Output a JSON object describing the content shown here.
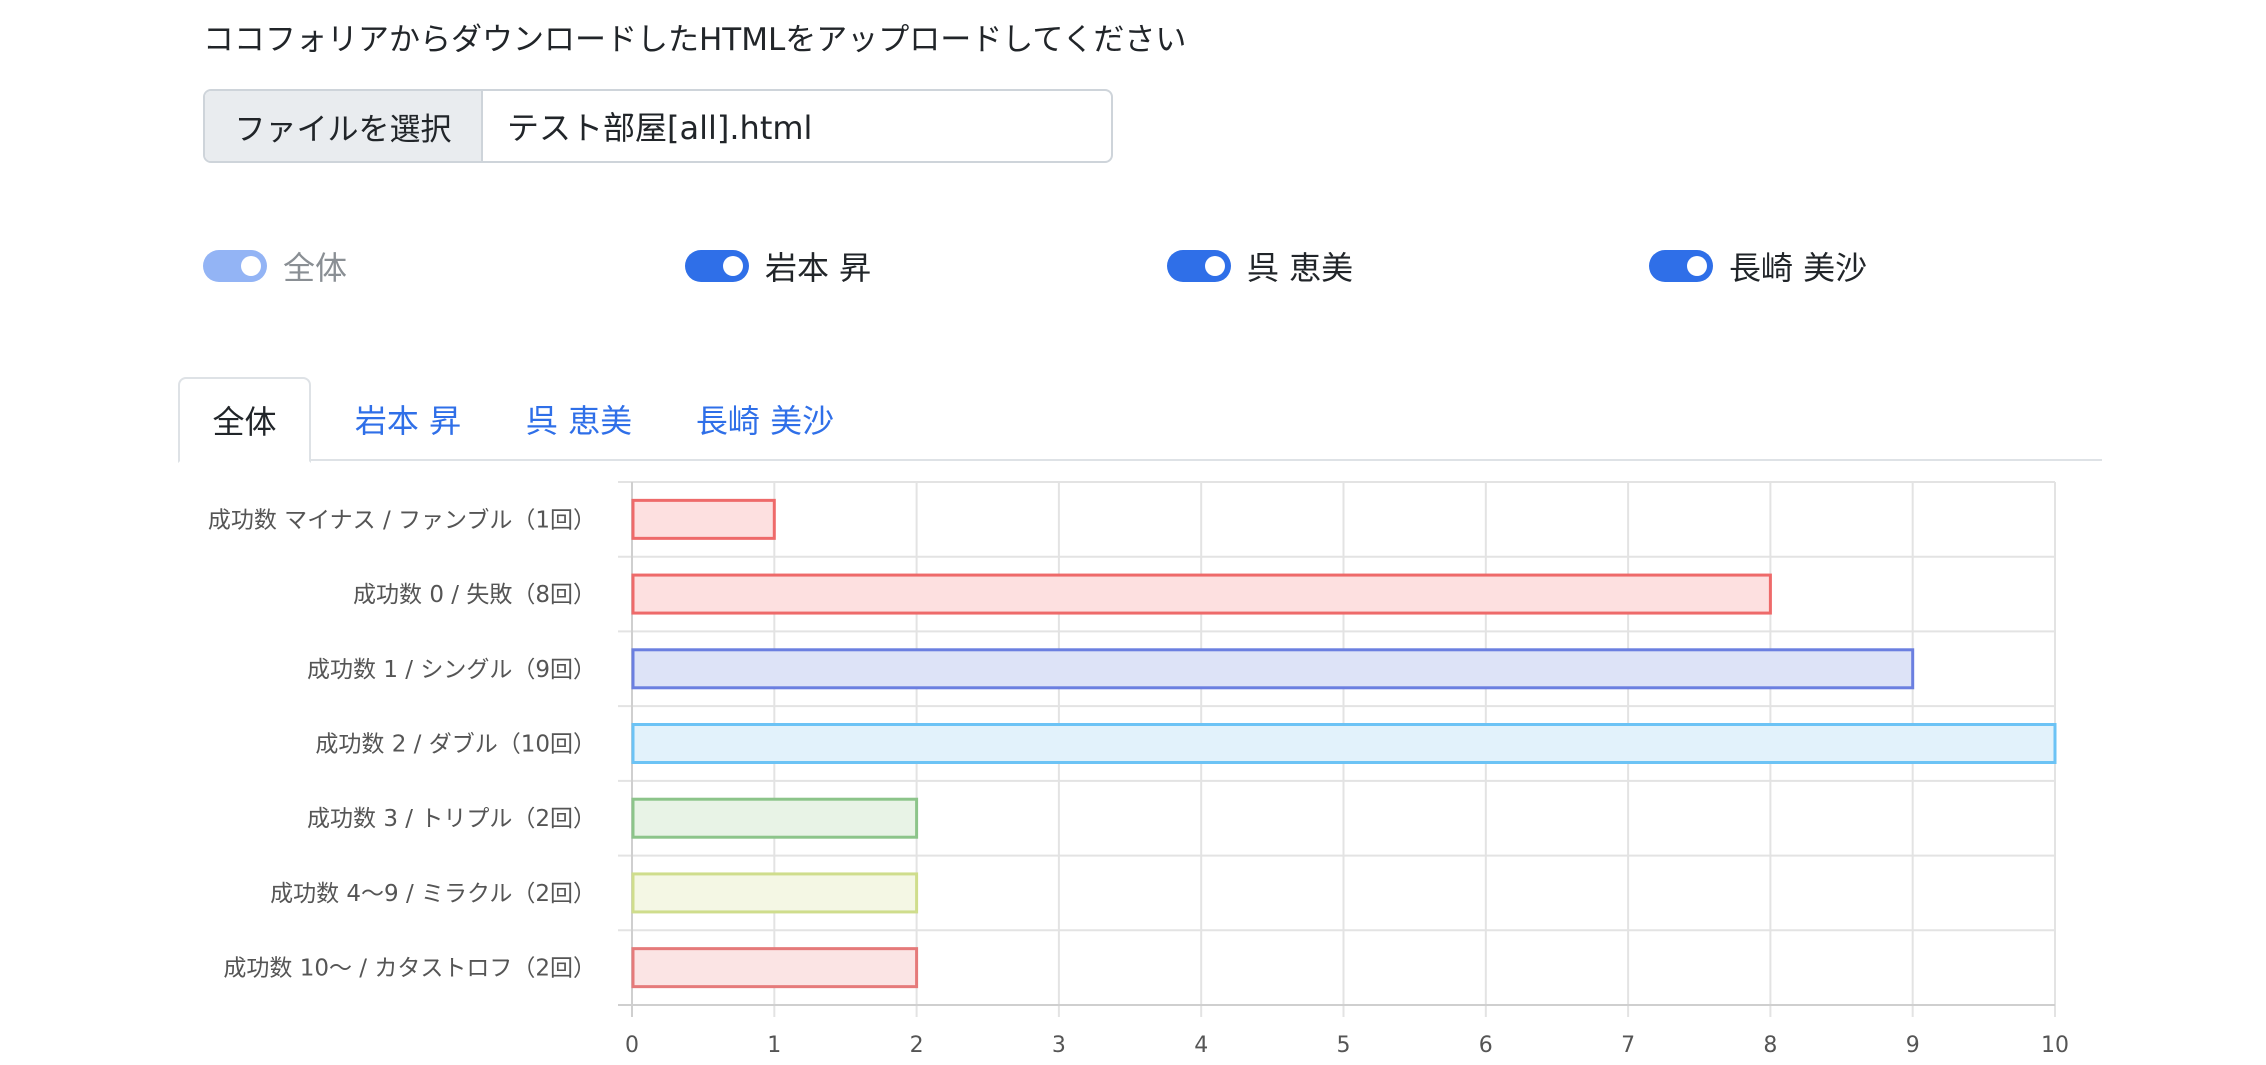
{
  "header": {
    "instruction": "ココフォリアからダウンロードしたHTMLをアップロードしてください"
  },
  "file_input": {
    "button_label": "ファイルを選択",
    "file_name": "テスト部屋[all].html"
  },
  "switches": [
    {
      "label": "全体",
      "on": true,
      "disabled": true
    },
    {
      "label": "岩本 昇",
      "on": true,
      "disabled": false
    },
    {
      "label": "呉 恵美",
      "on": true,
      "disabled": false
    },
    {
      "label": "長崎 美沙",
      "on": true,
      "disabled": false
    }
  ],
  "tabs": [
    {
      "label": "全体",
      "active": true
    },
    {
      "label": "岩本 昇",
      "active": false
    },
    {
      "label": "呉 恵美",
      "active": false
    },
    {
      "label": "長崎 美沙",
      "active": false
    }
  ],
  "chart_data": {
    "type": "bar",
    "orientation": "horizontal",
    "categories": [
      "成功数 マイナス / ファンブル（1回）",
      "成功数 0 / 失敗（8回）",
      "成功数 1 / シングル（9回）",
      "成功数 2 / ダブル（10回）",
      "成功数 3 / トリプル（2回）",
      "成功数 4〜9 / ミラクル（2回）",
      "成功数 10〜 / カタストロフ（2回）"
    ],
    "values": [
      1,
      8,
      9,
      10,
      2,
      2,
      2
    ],
    "colors": [
      {
        "fill": "#fde0e0",
        "stroke": "#ee6a6a"
      },
      {
        "fill": "#fde0e0",
        "stroke": "#ee6a6a"
      },
      {
        "fill": "#dde3f7",
        "stroke": "#6b7fe0"
      },
      {
        "fill": "#e2f2fb",
        "stroke": "#6cc3f5"
      },
      {
        "fill": "#e8f3e6",
        "stroke": "#8cc48a"
      },
      {
        "fill": "#f4f7e4",
        "stroke": "#cfdd8c"
      },
      {
        "fill": "#fbe4e4",
        "stroke": "#e57a7a"
      }
    ],
    "xlim": [
      0,
      10
    ],
    "xticks": [
      0,
      1,
      2,
      3,
      4,
      5,
      6,
      7,
      8,
      9,
      10
    ],
    "grid": true,
    "legend": "none",
    "title": "",
    "xlabel": "",
    "ylabel": ""
  }
}
